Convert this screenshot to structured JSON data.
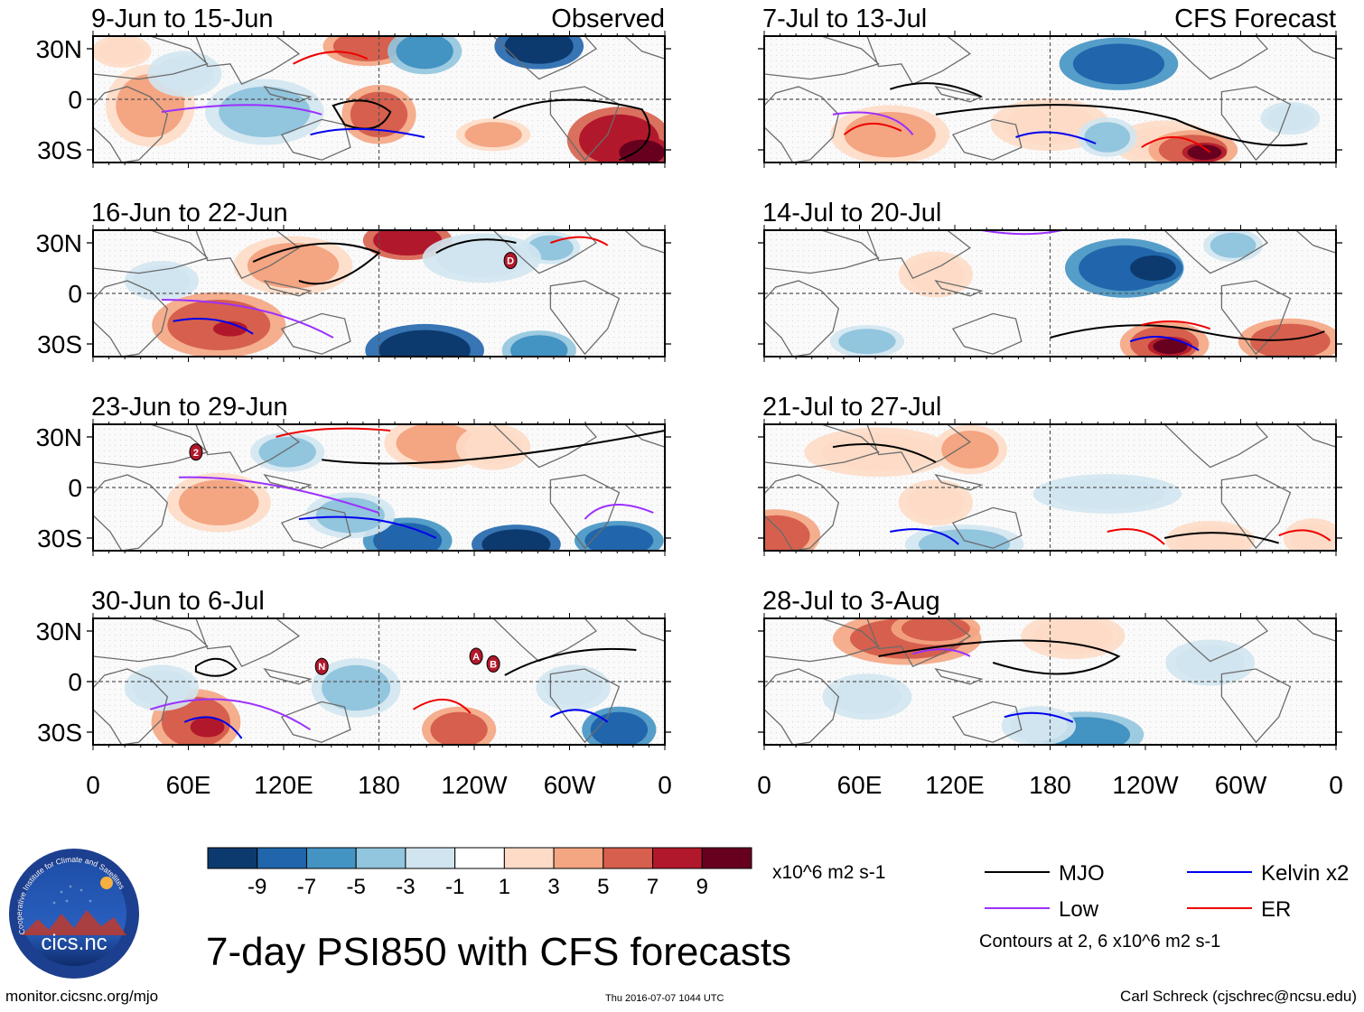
{
  "title": "7-day PSI850 with CFS forecasts",
  "columns": {
    "observed_label": "Observed",
    "forecast_label": "CFS Forecast"
  },
  "panels": [
    {
      "period": "9-Jun to 15-Jun",
      "source": "observed"
    },
    {
      "period": "16-Jun to 22-Jun",
      "source": "observed"
    },
    {
      "period": "23-Jun to 29-Jun",
      "source": "observed"
    },
    {
      "period": "30-Jun to 6-Jul",
      "source": "observed"
    },
    {
      "period": "7-Jul to 13-Jul",
      "source": "forecast"
    },
    {
      "period": "14-Jul to 20-Jul",
      "source": "forecast"
    },
    {
      "period": "21-Jul to 27-Jul",
      "source": "forecast"
    },
    {
      "period": "28-Jul to 3-Aug",
      "source": "forecast"
    }
  ],
  "axes": {
    "lat_ticks": [
      "30N",
      "0",
      "30S"
    ],
    "lon_ticks": [
      "0",
      "60E",
      "120E",
      "180",
      "120W",
      "60W",
      "0"
    ]
  },
  "colorbar": {
    "labels": [
      "-9",
      "-7",
      "-5",
      "-3",
      "-1",
      "1",
      "3",
      "5",
      "7",
      "9"
    ],
    "colors": [
      "#0d3a6e",
      "#2166ac",
      "#4393c3",
      "#92c5de",
      "#d1e5f0",
      "#ffffff",
      "#fddbc7",
      "#f4a582",
      "#d6604d",
      "#b2182b",
      "#67001f"
    ],
    "units": "x10^6 m2 s-1"
  },
  "legend": {
    "items": [
      {
        "label": "MJO",
        "color": "#000000"
      },
      {
        "label": "Kelvin x2",
        "color": "#0000ee"
      },
      {
        "label": "Low",
        "color": "#9b30ff"
      },
      {
        "label": "ER",
        "color": "#ee0000"
      }
    ],
    "contour_note": "Contours at 2, 6 x10^6 m2 s-1"
  },
  "storm_markers": [
    {
      "panel": 1,
      "letter": "D"
    },
    {
      "panel": 2,
      "letter": "2"
    },
    {
      "panel": 3,
      "letter": "N"
    },
    {
      "panel": 3,
      "letter": "A"
    },
    {
      "panel": 3,
      "letter": "B"
    }
  ],
  "logo_text": "cics.nc",
  "logo_ring_text": "Cooperative Institute for Climate and Satellites",
  "footer": {
    "url": "monitor.cicsnc.org/mjo",
    "timestamp": "Thu 2016-07-07 1044 UTC",
    "author": "Carl Schreck (cjschrec@ncsu.edu)"
  }
}
